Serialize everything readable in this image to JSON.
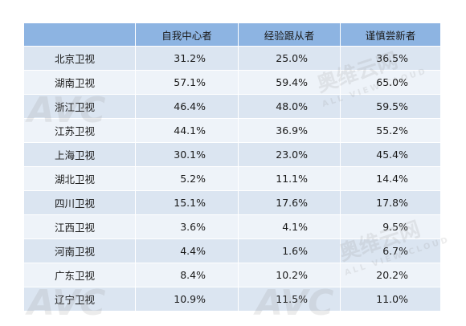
{
  "table": {
    "headers": [
      "",
      "自我中心者",
      "经验跟从者",
      "谨慎尝新者"
    ],
    "rows": [
      [
        "北京卫视",
        "31.2%",
        "25.0%",
        "36.5%"
      ],
      [
        "湖南卫视",
        "57.1%",
        "59.4%",
        "65.0%"
      ],
      [
        "浙江卫视",
        "46.4%",
        "48.0%",
        "59.5%"
      ],
      [
        "江苏卫视",
        "44.1%",
        "36.9%",
        "55.2%"
      ],
      [
        "上海卫视",
        "30.1%",
        "23.0%",
        "45.4%"
      ],
      [
        "湖北卫视",
        "5.2%",
        "11.1%",
        "14.4%"
      ],
      [
        "四川卫视",
        "15.1%",
        "17.6%",
        "17.8%"
      ],
      [
        "江西卫视",
        "3.6%",
        "4.1%",
        "9.5%"
      ],
      [
        "河南卫视",
        "4.4%",
        "1.6%",
        "6.7%"
      ],
      [
        "广东卫视",
        "8.4%",
        "10.2%",
        "20.2%"
      ],
      [
        "辽宁卫视",
        "10.9%",
        "11.5%",
        "11.0%"
      ]
    ]
  },
  "watermark": {
    "logo": "AVC",
    "cn": "奥维云网",
    "en": "ALL VIEW CLOUD"
  },
  "colors": {
    "header_bg": "#8db4e2",
    "row_dark": "#dbe5f1",
    "row_light": "#eef3f9"
  }
}
